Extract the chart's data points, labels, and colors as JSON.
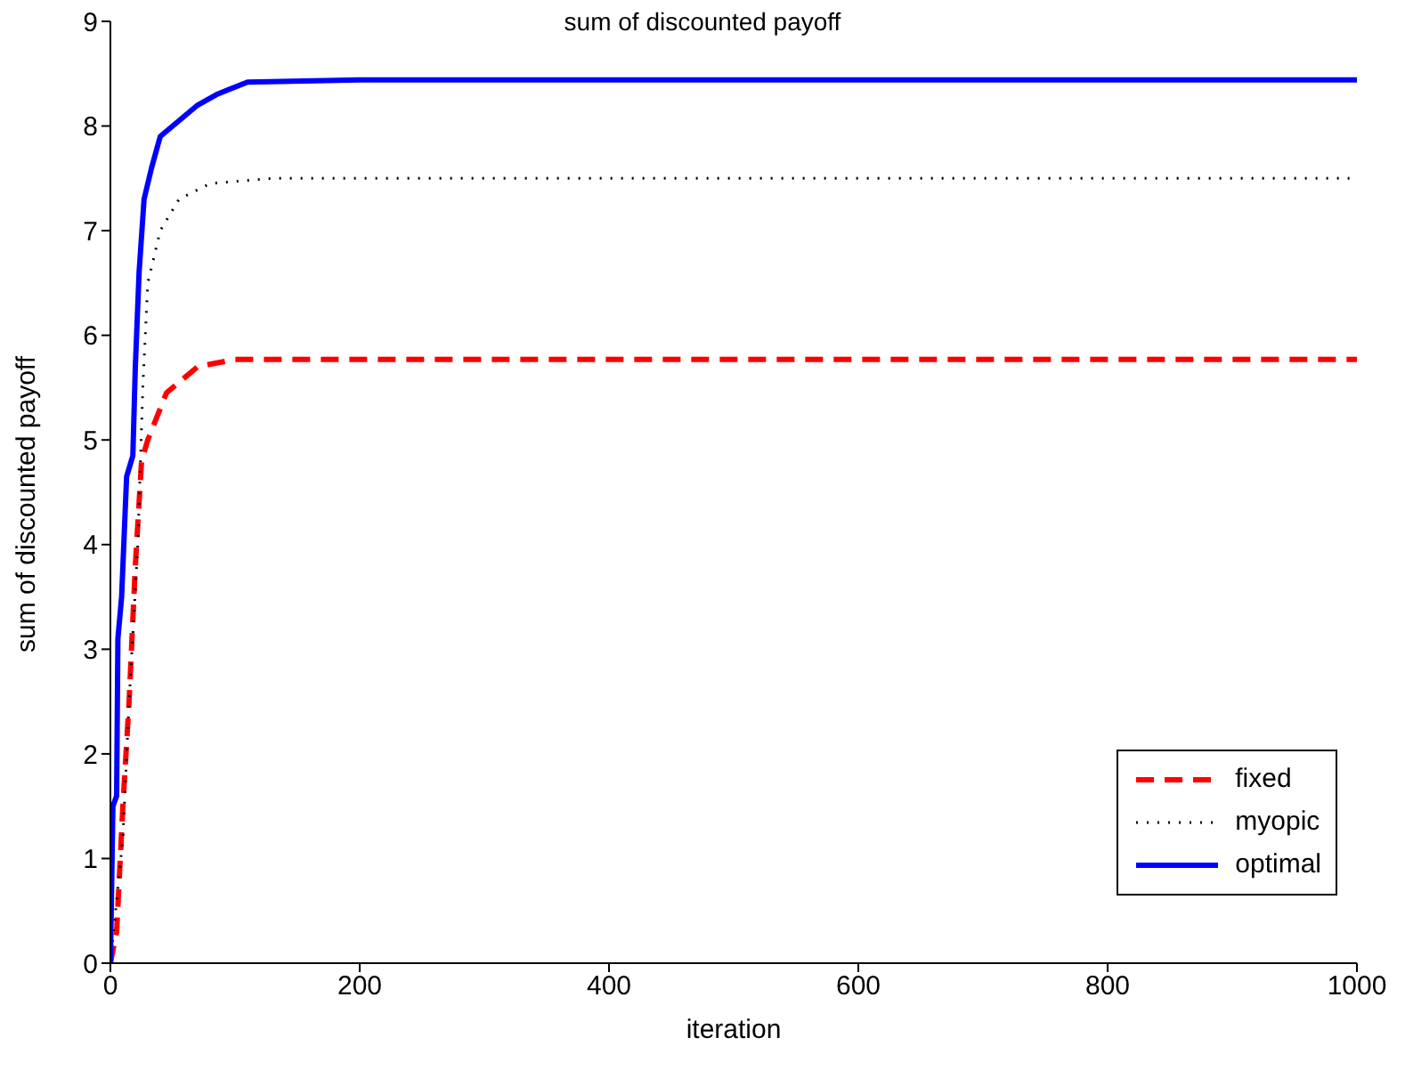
{
  "chart_data": {
    "type": "line",
    "title": "sum of discounted payoff",
    "xlabel": "iteration",
    "ylabel": "sum of discounted payoff",
    "xlim": [
      0,
      1000
    ],
    "xticks": [
      0,
      200,
      400,
      600,
      800,
      1000
    ],
    "ylim": [
      0,
      9
    ],
    "yticks": [
      0,
      1,
      2,
      3,
      4,
      5,
      6,
      7,
      8,
      9
    ],
    "grid": false,
    "legend": "bottom right",
    "marker": "none",
    "series": [
      {
        "name": "fixed",
        "color": "#ff0000",
        "line_style": "dashed",
        "x": [
          0,
          5,
          10,
          15,
          20,
          25,
          30,
          45,
          70,
          100,
          1000
        ],
        "values": [
          0,
          0.3,
          1.5,
          2.5,
          3.8,
          4.8,
          5.0,
          5.45,
          5.7,
          5.77,
          5.77
        ]
      },
      {
        "name": "myopic",
        "color": "#000000",
        "line_style": "dotted",
        "x": [
          0,
          10,
          15,
          22,
          26,
          30,
          40,
          55,
          80,
          130,
          1000
        ],
        "values": [
          0,
          1.2,
          2.5,
          4.0,
          5.5,
          6.5,
          7.0,
          7.3,
          7.45,
          7.5,
          7.5
        ]
      },
      {
        "name": "optimal",
        "color": "#0000ff",
        "line_style": "solid",
        "x": [
          0,
          2,
          5,
          6,
          9,
          13,
          18,
          20,
          23,
          27,
          33,
          40,
          50,
          60,
          70,
          85,
          110,
          200,
          1000
        ],
        "values": [
          0,
          1.5,
          1.6,
          3.1,
          3.5,
          4.65,
          4.85,
          5.7,
          6.6,
          7.3,
          7.6,
          7.9,
          8.0,
          8.1,
          8.2,
          8.3,
          8.42,
          8.44,
          8.44
        ]
      }
    ]
  }
}
